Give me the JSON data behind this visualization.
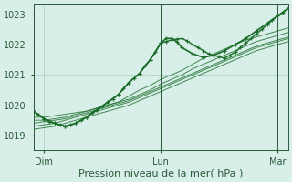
{
  "xlabel": "Pression niveau de la mer( hPa )",
  "bg_color": "#d8eee8",
  "grid_color": "#a8cfc0",
  "line_color": "#1a6e2a",
  "ylim": [
    1018.5,
    1023.35
  ],
  "xlim": [
    0,
    48
  ],
  "x_ticks": [
    2,
    24,
    46
  ],
  "x_tick_labels": [
    "Dim",
    "Lun",
    "Mar"
  ],
  "y_ticks": [
    1019,
    1020,
    1021,
    1022,
    1023
  ],
  "y_tick_labels": [
    "1019",
    "1020",
    "1021",
    "1022",
    "1023"
  ],
  "vlines": [
    24,
    46
  ],
  "ensemble_series": [
    {
      "x": [
        0,
        2,
        4,
        6,
        8,
        10,
        12,
        14,
        16,
        18,
        20,
        22,
        24,
        26,
        28,
        30,
        32,
        34,
        36,
        38,
        40,
        42,
        44,
        46,
        48
      ],
      "y": [
        1019.6,
        1019.6,
        1019.65,
        1019.7,
        1019.75,
        1019.8,
        1019.9,
        1020.0,
        1020.1,
        1020.3,
        1020.5,
        1020.65,
        1020.85,
        1021.0,
        1021.15,
        1021.35,
        1021.55,
        1021.7,
        1021.85,
        1022.0,
        1022.15,
        1022.25,
        1022.35,
        1022.45,
        1022.55
      ]
    },
    {
      "x": [
        0,
        2,
        4,
        6,
        8,
        10,
        12,
        14,
        16,
        18,
        20,
        22,
        24,
        26,
        28,
        30,
        32,
        34,
        36,
        38,
        40,
        42,
        44,
        46,
        48
      ],
      "y": [
        1019.5,
        1019.5,
        1019.55,
        1019.6,
        1019.7,
        1019.8,
        1019.9,
        1020.0,
        1020.1,
        1020.2,
        1020.35,
        1020.5,
        1020.7,
        1020.85,
        1021.0,
        1021.2,
        1021.35,
        1021.5,
        1021.65,
        1021.8,
        1021.95,
        1022.1,
        1022.2,
        1022.3,
        1022.4
      ]
    },
    {
      "x": [
        0,
        2,
        4,
        6,
        8,
        10,
        12,
        14,
        16,
        18,
        20,
        22,
        24,
        26,
        28,
        30,
        32,
        34,
        36,
        38,
        40,
        42,
        44,
        46,
        48
      ],
      "y": [
        1019.4,
        1019.45,
        1019.5,
        1019.55,
        1019.65,
        1019.75,
        1019.85,
        1019.95,
        1020.05,
        1020.15,
        1020.3,
        1020.45,
        1020.6,
        1020.75,
        1020.9,
        1021.05,
        1021.2,
        1021.35,
        1021.5,
        1021.65,
        1021.8,
        1021.95,
        1022.05,
        1022.15,
        1022.25
      ]
    },
    {
      "x": [
        0,
        2,
        4,
        6,
        8,
        10,
        12,
        14,
        16,
        18,
        20,
        22,
        24,
        26,
        28,
        30,
        32,
        34,
        36,
        38,
        40,
        42,
        44,
        46,
        48
      ],
      "y": [
        1019.3,
        1019.35,
        1019.4,
        1019.5,
        1019.6,
        1019.7,
        1019.8,
        1019.9,
        1020.0,
        1020.1,
        1020.25,
        1020.4,
        1020.55,
        1020.7,
        1020.85,
        1021.0,
        1021.15,
        1021.3,
        1021.45,
        1021.6,
        1021.75,
        1021.9,
        1022.0,
        1022.1,
        1022.2
      ]
    },
    {
      "x": [
        0,
        2,
        4,
        6,
        8,
        10,
        12,
        14,
        16,
        18,
        20,
        22,
        24,
        26,
        28,
        30,
        32,
        34,
        36,
        38,
        40,
        42,
        44,
        46,
        48
      ],
      "y": [
        1019.2,
        1019.25,
        1019.3,
        1019.4,
        1019.5,
        1019.6,
        1019.7,
        1019.8,
        1019.9,
        1020.0,
        1020.15,
        1020.3,
        1020.45,
        1020.6,
        1020.75,
        1020.9,
        1021.05,
        1021.2,
        1021.35,
        1021.5,
        1021.65,
        1021.8,
        1021.9,
        1022.0,
        1022.1
      ]
    }
  ],
  "main_series_x": [
    0,
    1,
    2,
    3,
    4,
    5,
    6,
    7,
    8,
    9,
    10,
    11,
    12,
    13,
    14,
    15,
    16,
    17,
    18,
    19,
    20,
    21,
    22,
    23,
    24,
    25,
    26,
    27,
    28,
    29,
    30,
    31,
    32,
    33,
    34,
    35,
    36,
    37,
    38,
    39,
    40,
    41,
    42,
    43,
    44,
    45,
    46,
    47,
    48
  ],
  "main_series_y": [
    1019.8,
    1019.7,
    1019.55,
    1019.45,
    1019.4,
    1019.35,
    1019.3,
    1019.35,
    1019.4,
    1019.5,
    1019.6,
    1019.75,
    1019.85,
    1019.95,
    1020.1,
    1020.2,
    1020.35,
    1020.55,
    1020.75,
    1020.9,
    1021.05,
    1021.3,
    1021.5,
    1021.75,
    1022.05,
    1022.1,
    1022.15,
    1022.18,
    1022.2,
    1022.12,
    1022.0,
    1021.9,
    1021.8,
    1021.7,
    1021.65,
    1021.6,
    1021.55,
    1021.65,
    1021.75,
    1021.9,
    1022.05,
    1022.2,
    1022.35,
    1022.5,
    1022.65,
    1022.8,
    1022.95,
    1023.05,
    1023.2
  ],
  "peak_series_x": [
    0,
    2,
    4,
    6,
    8,
    10,
    12,
    14,
    16,
    18,
    20,
    22,
    24,
    25,
    26,
    27,
    28,
    30,
    32,
    34,
    36,
    38,
    40,
    42,
    44,
    46,
    48
  ],
  "peak_series_y": [
    1019.8,
    1019.55,
    1019.4,
    1019.3,
    1019.4,
    1019.6,
    1019.85,
    1020.1,
    1020.35,
    1020.75,
    1021.05,
    1021.5,
    1022.05,
    1022.2,
    1022.2,
    1022.1,
    1021.9,
    1021.7,
    1021.58,
    1021.65,
    1021.8,
    1022.0,
    1022.2,
    1022.45,
    1022.7,
    1022.95,
    1023.2
  ]
}
